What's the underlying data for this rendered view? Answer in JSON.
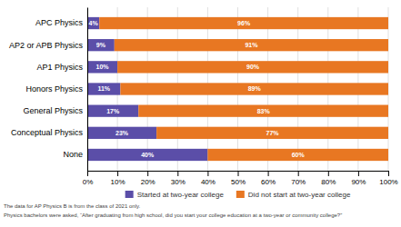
{
  "chart_data": {
    "type": "bar",
    "orientation": "horizontal",
    "stacked": true,
    "data_labels": true,
    "grid": true,
    "legend": "bottom",
    "categories": [
      "APC Physics",
      "AP2 or APB Physics",
      "AP1 Physics",
      "Honors Physics",
      "General Physics",
      "Conceptual Physics",
      "None"
    ],
    "series": [
      {
        "name": "Started at two-year college",
        "color": "#5B4EA8",
        "values": [
          4,
          9,
          10,
          11,
          17,
          23,
          40
        ],
        "value_labels": [
          "4%",
          "9%",
          "10%",
          "11%",
          "17%",
          "23%",
          "40%"
        ]
      },
      {
        "name": "Did not start at two-year college",
        "color": "#E87722",
        "values": [
          96,
          91,
          90,
          89,
          83,
          77,
          60
        ],
        "value_labels": [
          "96%",
          "91%",
          "90%",
          "89%",
          "83%",
          "77%",
          "60%"
        ]
      }
    ],
    "xlim": [
      0,
      100
    ],
    "xticks": [
      {
        "value": 0,
        "label": "0%"
      },
      {
        "value": 10,
        "label": "10%"
      },
      {
        "value": 20,
        "label": "20%"
      },
      {
        "value": 30,
        "label": "30%"
      },
      {
        "value": 40,
        "label": "40%"
      },
      {
        "value": 50,
        "label": "50%"
      },
      {
        "value": 60,
        "label": "60%"
      },
      {
        "value": 70,
        "label": "70%"
      },
      {
        "value": 80,
        "label": "80%"
      },
      {
        "value": 90,
        "label": "90%"
      },
      {
        "value": 100,
        "label": "100%"
      }
    ],
    "annotations": [
      "The data for AP Physics B is from the class of 2021 only.",
      "Physics bachelors were asked, “After graduating from high school, did you start your college education at a two-year or community college?”"
    ]
  }
}
